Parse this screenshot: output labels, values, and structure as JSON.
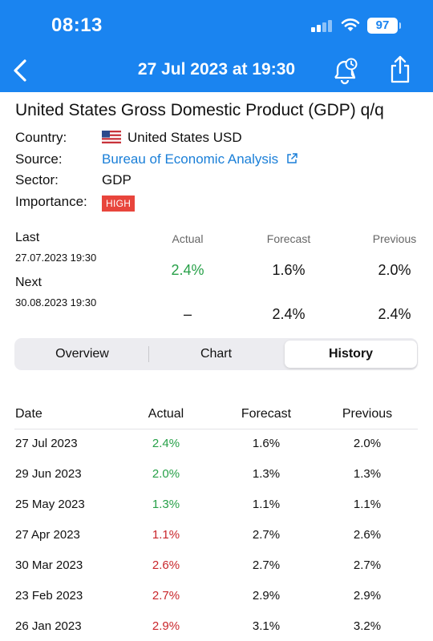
{
  "status_bar": {
    "time": "08:13",
    "battery": "97"
  },
  "nav": {
    "title": "27 Jul 2023 at 19:30"
  },
  "event": {
    "title": "United States Gross Domestic Product (GDP) q/q",
    "country_label": "Country:",
    "country_value": "United States USD",
    "source_label": "Source:",
    "source_value": "Bureau of Economic Analysis",
    "sector_label": "Sector:",
    "sector_value": "GDP",
    "importance_label": "Importance:",
    "importance_value": "HIGH"
  },
  "summary": {
    "headers": {
      "actual": "Actual",
      "forecast": "Forecast",
      "previous": "Previous"
    },
    "last": {
      "label": "Last",
      "date": "27.07.2023 19:30",
      "actual": "2.4%",
      "forecast": "1.6%",
      "previous": "2.0%"
    },
    "next": {
      "label": "Next",
      "date": "30.08.2023 19:30",
      "actual": "–",
      "forecast": "2.4%",
      "previous": "2.4%"
    }
  },
  "tabs": {
    "overview": "Overview",
    "chart": "Chart",
    "history": "History",
    "active": "history"
  },
  "history": {
    "headers": {
      "date": "Date",
      "actual": "Actual",
      "forecast": "Forecast",
      "previous": "Previous"
    },
    "rows": [
      {
        "date": "27 Jul 2023",
        "actual": "2.4%",
        "forecast": "1.6%",
        "previous": "2.0%",
        "trend": "green"
      },
      {
        "date": "29 Jun 2023",
        "actual": "2.0%",
        "forecast": "1.3%",
        "previous": "1.3%",
        "trend": "green"
      },
      {
        "date": "25 May 2023",
        "actual": "1.3%",
        "forecast": "1.1%",
        "previous": "1.1%",
        "trend": "green"
      },
      {
        "date": "27 Apr 2023",
        "actual": "1.1%",
        "forecast": "2.7%",
        "previous": "2.6%",
        "trend": "red"
      },
      {
        "date": "30 Mar 2023",
        "actual": "2.6%",
        "forecast": "2.7%",
        "previous": "2.7%",
        "trend": "red"
      },
      {
        "date": "23 Feb 2023",
        "actual": "2.7%",
        "forecast": "2.9%",
        "previous": "2.9%",
        "trend": "red"
      },
      {
        "date": "26 Jan 2023",
        "actual": "2.9%",
        "forecast": "3.1%",
        "previous": "3.2%",
        "trend": "red"
      }
    ]
  },
  "colors": {
    "header_blue": "#1a84f0",
    "positive": "#27a048",
    "negative": "#c9262b",
    "badge": "#e8453c",
    "link": "#1a7fd8"
  }
}
